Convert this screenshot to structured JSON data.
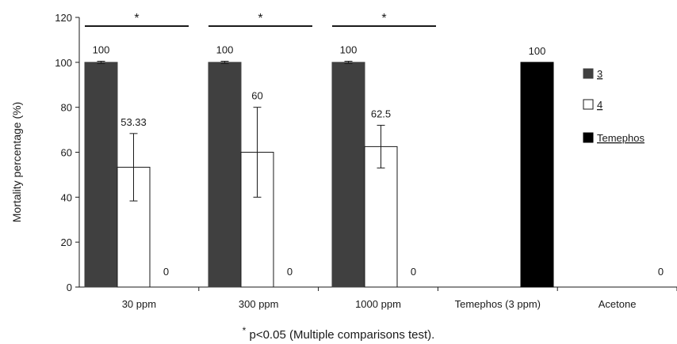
{
  "chart_data": {
    "type": "bar",
    "categories": [
      "30 ppm",
      "300 ppm",
      "1000 ppm",
      "Temephos (3 ppm)",
      "Acetone"
    ],
    "series": [
      {
        "name": "3",
        "color": "#404040",
        "values": [
          100,
          100,
          100,
          null,
          null
        ],
        "errors": [
          0.5,
          0.5,
          0.5,
          null,
          null
        ],
        "labels": [
          "100",
          "100",
          "100",
          "",
          ""
        ]
      },
      {
        "name": "4",
        "color": "#ffffff",
        "values": [
          53.33,
          60,
          62.5,
          null,
          null
        ],
        "errors": [
          15,
          20,
          9.5,
          null,
          null
        ],
        "labels": [
          "53.33",
          "60",
          "62.5",
          "",
          ""
        ]
      },
      {
        "name": "Temephos",
        "color": "#000000",
        "values": [
          0,
          0,
          0,
          100,
          0
        ],
        "errors": [
          null,
          null,
          null,
          null,
          null
        ],
        "labels": [
          "0",
          "0",
          "0",
          "100",
          "0"
        ]
      }
    ],
    "ylabel": "Mortality percentage (%)",
    "ylim": [
      0,
      120
    ],
    "yticks": [
      0,
      20,
      40,
      60,
      80,
      100,
      120
    ],
    "grid": false,
    "legend_position": "right",
    "significance": [
      {
        "category": "30 ppm",
        "marker": "*"
      },
      {
        "category": "300 ppm",
        "marker": "*"
      },
      {
        "category": "1000 ppm",
        "marker": "*"
      }
    ]
  },
  "footnote": {
    "marker": "*",
    "text": "p<0.05 (Multiple comparisons test)."
  }
}
